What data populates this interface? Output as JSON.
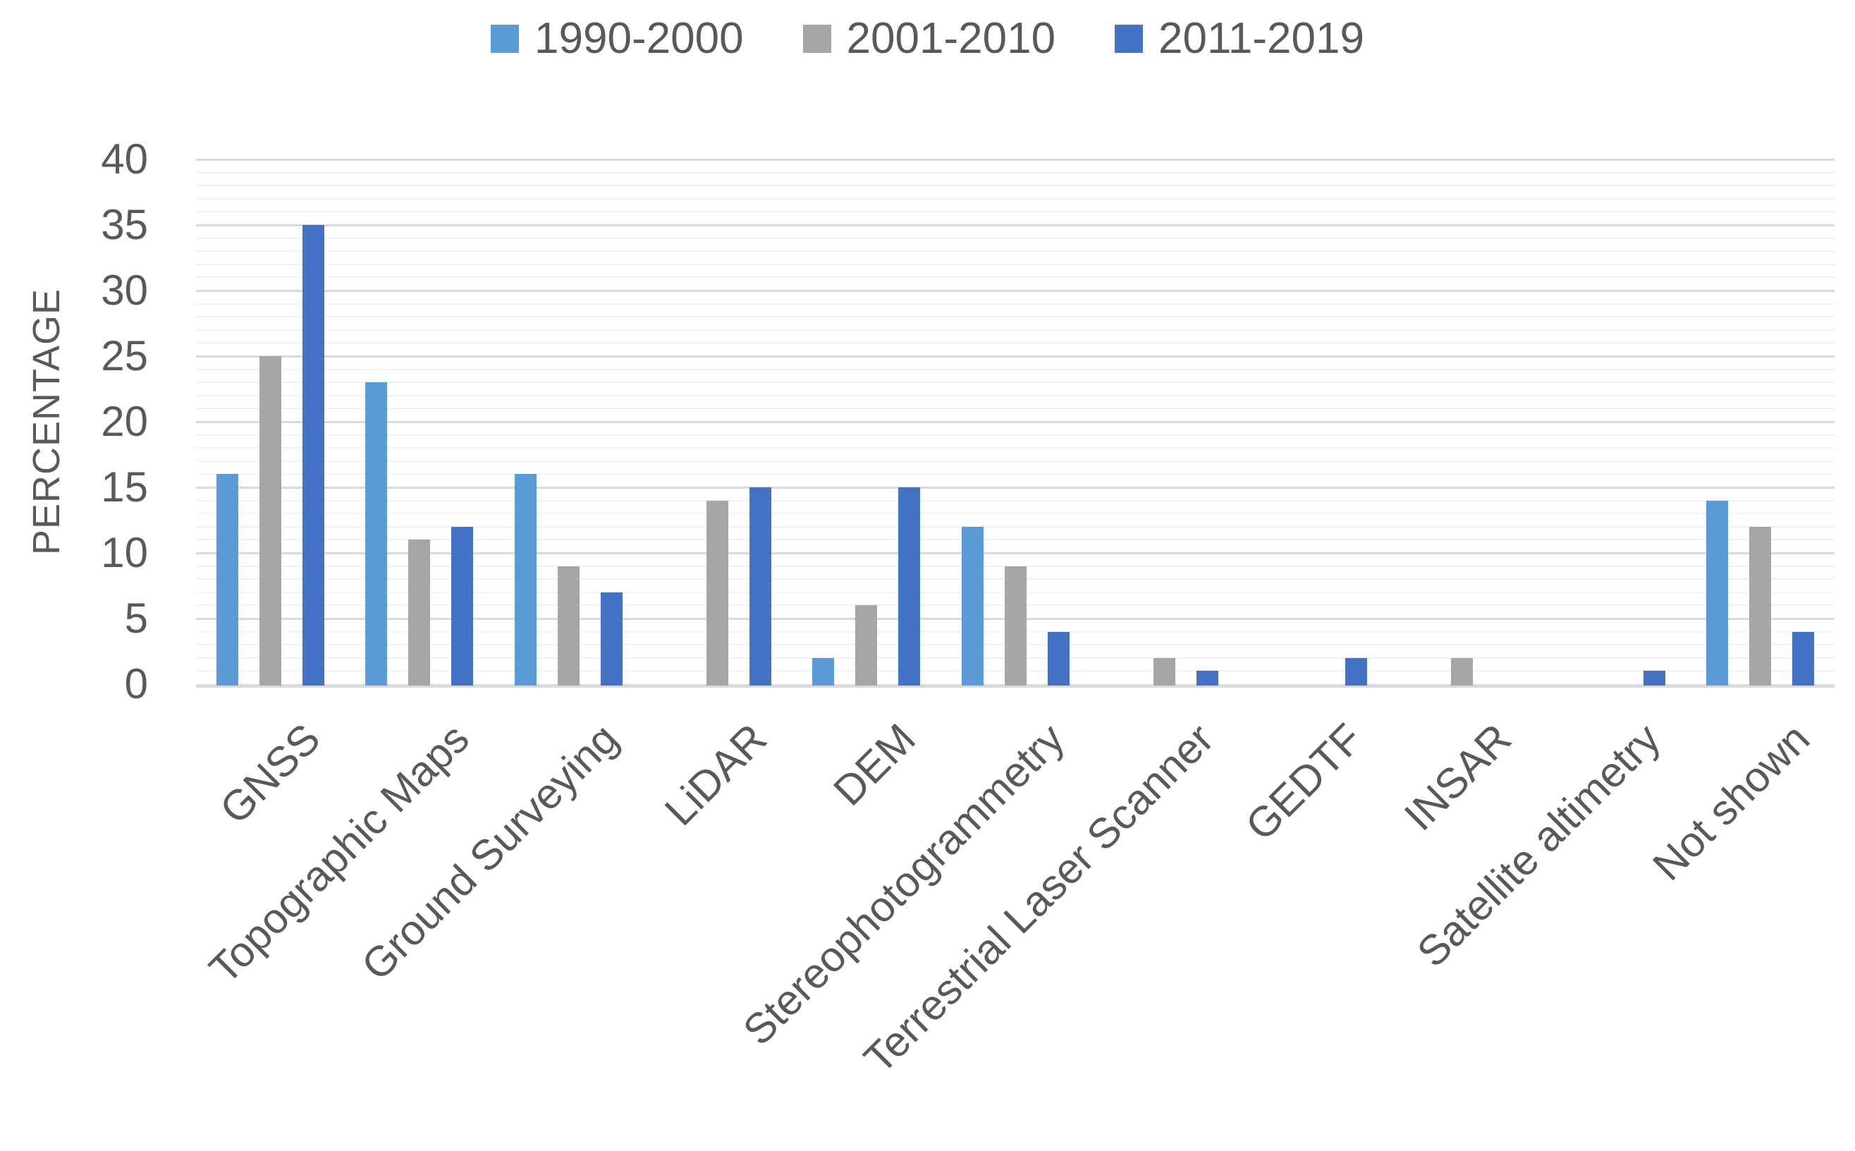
{
  "chart_data": {
    "type": "bar",
    "title": "",
    "categories": [
      "GNSS",
      "Topographic Maps",
      "Ground Surveying",
      "LiDAR",
      "DEM",
      "Stereophotogrammetry",
      "Terrestrial Laser Scanner",
      "GEDTF",
      "INSAR",
      "Satellite altimetry",
      "Not shown"
    ],
    "series": [
      {
        "name": "1990-2000",
        "color": "#5B9BD5",
        "values": [
          16,
          23,
          16,
          0,
          2,
          12,
          0,
          0,
          0,
          0,
          14
        ]
      },
      {
        "name": "2001-2010",
        "color": "#A6A6A6",
        "values": [
          25,
          11,
          9,
          14,
          6,
          9,
          2,
          0,
          2,
          0,
          12
        ]
      },
      {
        "name": "2011-2019",
        "color": "#4472C4",
        "values": [
          35,
          12,
          7,
          15,
          15,
          4,
          1,
          2,
          0,
          1,
          4
        ]
      }
    ],
    "xlabel": "",
    "ylabel": "PERCENTAGE",
    "ylim": [
      0,
      40
    ],
    "y_major_step": 5,
    "y_minor_step": 1,
    "y_tick_labels": [
      "0",
      "5",
      "10",
      "15",
      "20",
      "25",
      "30",
      "35",
      "40"
    ],
    "legend_position": "top",
    "grid": {
      "major_color": "#D9D9D9",
      "minor_color": "#F2F2F2",
      "baseline_color": "#D9D9D9"
    },
    "text_color": "#595959",
    "background": "#FFFFFF"
  }
}
